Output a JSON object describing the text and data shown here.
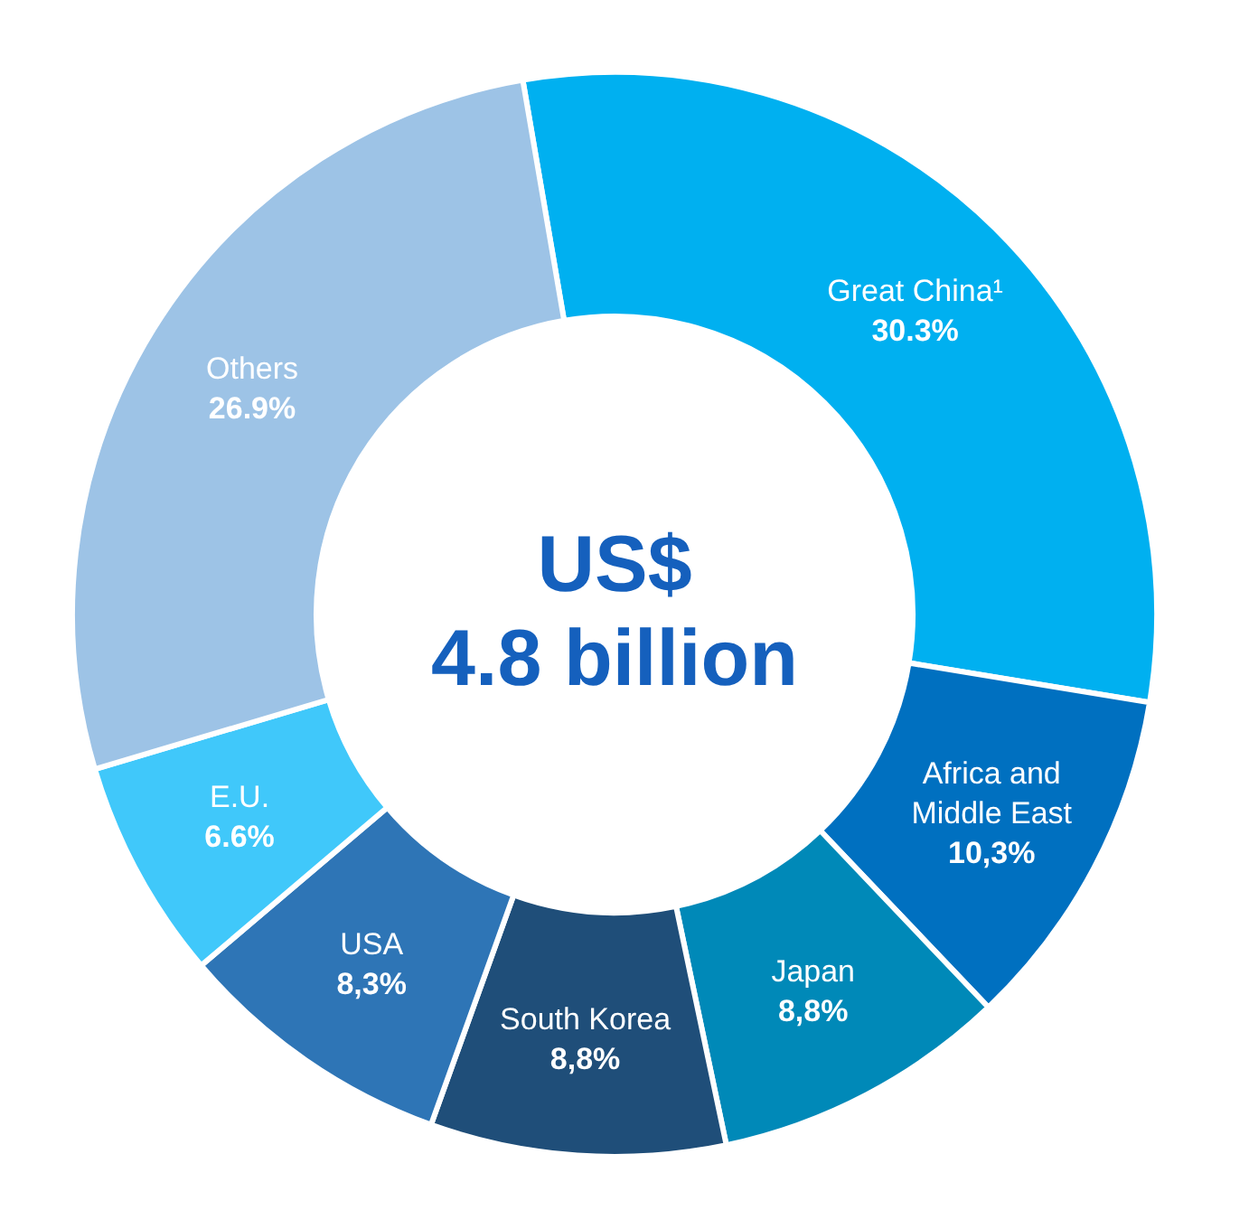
{
  "chart_data": {
    "type": "donut",
    "categories": [
      "Great China¹",
      "Africa and Middle East",
      "Japan",
      "South Korea",
      "USA",
      "E.U.",
      "Others"
    ],
    "values": [
      30.3,
      10.3,
      8.8,
      8.8,
      8.3,
      6.6,
      26.9
    ],
    "value_labels": [
      "30.3%",
      "10,3%",
      "8,8%",
      "8,8%",
      "8,3%",
      "6.6%",
      "26.9%"
    ],
    "colors": [
      "#00b0f0",
      "#0070c0",
      "#0089b8",
      "#1f4e79",
      "#2e75b6",
      "#40c8fa",
      "#9dc3e6"
    ],
    "annotations": [
      "US$",
      "4.8 billion"
    ]
  }
}
